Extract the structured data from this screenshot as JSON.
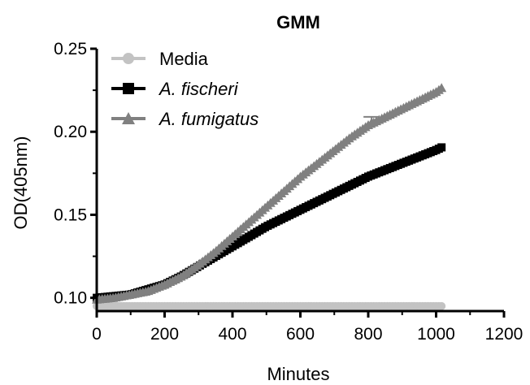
{
  "chart_data": {
    "type": "line",
    "title": "GMM",
    "xlabel": "Minutes",
    "ylabel": "OD(405nm)",
    "xlim": [
      0,
      1200
    ],
    "ylim": [
      0.092,
      0.25
    ],
    "xticks": [
      0,
      200,
      400,
      600,
      800,
      1000,
      1200
    ],
    "xtick_labels": [
      "0",
      "200",
      "400",
      "600",
      "800",
      "1000",
      "1200"
    ],
    "yticks": [
      0.1,
      0.15,
      0.2,
      0.25
    ],
    "ytick_labels": [
      "0.10",
      "0.15",
      "0.20",
      "0.25"
    ],
    "grid": false,
    "legend_position": "top-left",
    "series": [
      {
        "name": "Media",
        "italic": false,
        "marker": "circle",
        "color": "#c3c3c3",
        "x": [
          0,
          1020
        ],
        "y": [
          0.095,
          0.095
        ]
      },
      {
        "name": "A. fischeri",
        "italic": true,
        "marker": "square",
        "color": "#000000",
        "x": [
          0,
          50,
          100,
          150,
          200,
          250,
          300,
          350,
          400,
          450,
          500,
          550,
          600,
          650,
          700,
          750,
          800,
          850,
          900,
          950,
          1000,
          1020
        ],
        "y": [
          0.1,
          0.101,
          0.102,
          0.105,
          0.108,
          0.113,
          0.119,
          0.125,
          0.131,
          0.137,
          0.143,
          0.148,
          0.153,
          0.158,
          0.163,
          0.168,
          0.173,
          0.177,
          0.181,
          0.185,
          0.189,
          0.191
        ]
      },
      {
        "name": "A. fumigatus",
        "italic": true,
        "marker": "triangle",
        "color": "#808080",
        "x": [
          0,
          50,
          100,
          150,
          200,
          250,
          300,
          350,
          400,
          450,
          500,
          550,
          600,
          650,
          700,
          750,
          800,
          850,
          900,
          950,
          1000,
          1020
        ],
        "y": [
          0.099,
          0.1,
          0.102,
          0.104,
          0.108,
          0.113,
          0.12,
          0.128,
          0.137,
          0.146,
          0.155,
          0.164,
          0.173,
          0.181,
          0.189,
          0.197,
          0.204,
          0.209,
          0.214,
          0.219,
          0.224,
          0.227
        ],
        "error_bar": {
          "x": 810,
          "y": 0.205,
          "upper": 0.209
        }
      }
    ]
  }
}
